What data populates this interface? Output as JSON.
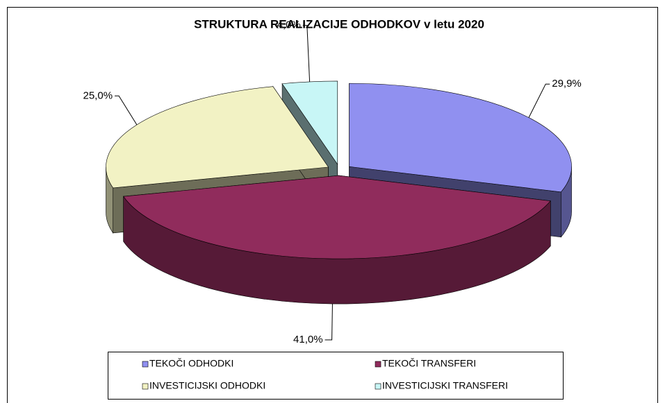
{
  "chart_data": {
    "type": "pie3d",
    "title": "STRUKTURA REALIZACIJE ODHODKOV v letu 2020",
    "categories": [
      "TEKOČI ODHODKI",
      "TEKOČI TRANSFERI",
      "INVESTICIJSKI ODHODKI",
      "INVESTICIJSKI TRANSFERI"
    ],
    "values": [
      29.9,
      41.0,
      25.0,
      4.0
    ],
    "value_labels": [
      "29,9%",
      "41,0%",
      "25,0%",
      "4,0%"
    ],
    "colors": [
      "#9090f0",
      "#902c5c",
      "#f2f2c4",
      "#c8f6f6"
    ],
    "legend": "bottom"
  }
}
